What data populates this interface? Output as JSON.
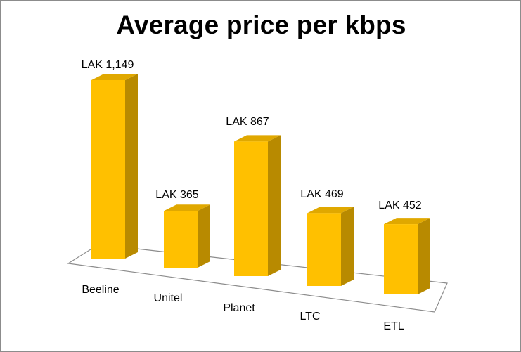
{
  "chart_data": {
    "type": "bar",
    "title": "Average price per kbps",
    "xlabel": "",
    "ylabel": "",
    "categories": [
      "Beeline",
      "Unitel",
      "Planet",
      "LTC",
      "ETL"
    ],
    "values": [
      1149,
      365,
      867,
      469,
      452
    ],
    "value_labels": [
      "LAK 1,149",
      "LAK 365",
      "LAK 867",
      "LAK 469",
      "LAK 452"
    ],
    "ylim": [
      0,
      1149
    ],
    "grid": false,
    "legend": "none",
    "style": "3d-column",
    "colors": {
      "front": "#ffc000",
      "side": "#b88a00",
      "top": "#e0a800",
      "floor_stroke": "#8c8c8c"
    }
  }
}
